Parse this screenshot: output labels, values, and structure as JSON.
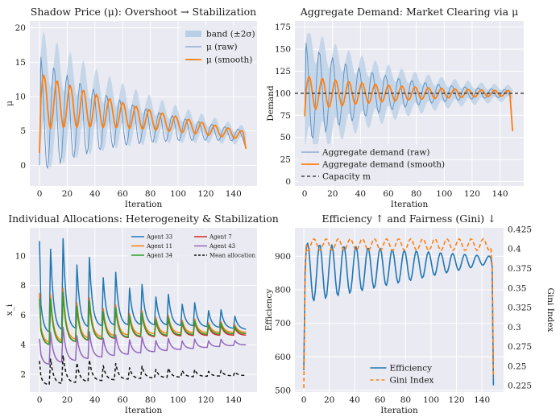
{
  "chart_data": [
    {
      "type": "line",
      "title": "Shadow Price (μ): Overshoot → Stabilization",
      "xlabel": "Iteration",
      "ylabel": "μ",
      "xlim": [
        -7,
        157
      ],
      "ylim": [
        -3,
        21
      ],
      "xticks": [
        0,
        20,
        40,
        60,
        80,
        100,
        120,
        140
      ],
      "yticks": [
        0,
        5,
        10,
        15,
        20
      ],
      "grid": true,
      "legend_position": "upper right",
      "series": [
        {
          "name": "band (±2σ)",
          "kind": "band",
          "color": "#b8cfe6",
          "amp": 6.7,
          "ampEnd": 0.8,
          "phaseLag": 1.6,
          "minLow": -0.4
        },
        {
          "name": "μ (raw)",
          "kind": "raw",
          "color": "#5b8fc4",
          "width": 0.9,
          "mean": 7.3,
          "meanEnd": 4.3,
          "amp": 8.6,
          "ampEnd": 0.8,
          "period": 9.5,
          "phase": 0.6,
          "startVal": 0.0,
          "endVal": 2.4
        },
        {
          "name": "μ (smooth)",
          "kind": "smooth",
          "color": "#ff7f0e",
          "width": 1.8,
          "mean": 9.3,
          "meanEnd": 4.3,
          "amp": 4.1,
          "ampEnd": 0.6,
          "period": 9.5,
          "phase": 2.1,
          "startVal": 1.8,
          "endVal": 2.4
        }
      ]
    },
    {
      "type": "line",
      "title": "Aggregate Demand: Market Clearing via μ",
      "xlabel": "Iteration",
      "ylabel": "Demand",
      "xlim": [
        -7,
        157
      ],
      "ylim": [
        -5,
        182
      ],
      "xticks": [
        0,
        20,
        40,
        60,
        80,
        100,
        120,
        140
      ],
      "yticks": [
        0,
        25,
        50,
        75,
        100,
        125,
        150,
        175
      ],
      "grid": true,
      "legend_position": "lower left",
      "capacity": 100,
      "series": [
        {
          "name": "",
          "kind": "band",
          "color": "#b8cfe6",
          "amp": 58,
          "ampEnd": 6,
          "phaseLag": 1.6,
          "minLow": 10,
          "maxHigh": 168
        },
        {
          "name": "Aggregate demand (raw)",
          "kind": "raw",
          "color": "#5b8fc4",
          "width": 0.9,
          "mean": 100,
          "meanEnd": 100,
          "amp": 58,
          "ampEnd": 4,
          "period": 9.5,
          "phase": 0.6,
          "startVal": 75,
          "endVal": 60
        },
        {
          "name": "Aggregate demand (smooth)",
          "kind": "smooth",
          "color": "#ff7f0e",
          "width": 1.8,
          "mean": 100,
          "meanEnd": 100,
          "amp": 20,
          "ampEnd": 3,
          "period": 9.5,
          "phase": 2.1,
          "startVal": 74,
          "endVal": 57
        },
        {
          "name": "Capacity m",
          "kind": "hline",
          "color": "#222222",
          "value": 100
        }
      ]
    },
    {
      "type": "line",
      "title": "Individual Allocations: Heterogeneity & Stabilization",
      "xlabel": "Iteration",
      "ylabel": "x_i",
      "xlim": [
        -7,
        157
      ],
      "ylim": [
        0.8,
        11.9
      ],
      "xticks": [
        0,
        20,
        40,
        60,
        80,
        100,
        120,
        140
      ],
      "yticks": [
        2,
        4,
        6,
        8,
        10
      ],
      "grid": true,
      "legend_position": "upper right",
      "series": [
        {
          "name": "Agent 33",
          "kind": "spiky",
          "color": "#1f77b4",
          "mean": 6.9,
          "meanEnd": 5.3,
          "amp": 4.2,
          "ampEnd": 0.5,
          "period": 9.5,
          "startVal": 11.0
        },
        {
          "name": "Agent 7",
          "kind": "spiky",
          "color": "#d62728",
          "mean": 5.1,
          "meanEnd": 4.8,
          "amp": 2.3,
          "ampEnd": 0.3,
          "period": 9.5,
          "startVal": 7.3
        },
        {
          "name": "Agent 11",
          "kind": "spiky",
          "color": "#ff7f0e",
          "mean": 5.3,
          "meanEnd": 5.0,
          "amp": 2.4,
          "ampEnd": 0.3,
          "period": 9.5,
          "startVal": 7.5
        },
        {
          "name": "Agent 43",
          "kind": "spiky",
          "color": "#9467bd",
          "mean": 3.4,
          "meanEnd": 4.1,
          "amp": 1.6,
          "ampEnd": 0.2,
          "period": 9.5,
          "startVal": 4.4
        },
        {
          "name": "Agent 34",
          "kind": "spiky",
          "color": "#2ca02c",
          "mean": 5.1,
          "meanEnd": 4.9,
          "amp": 2.3,
          "ampEnd": 0.3,
          "period": 9.5,
          "startVal": 7.1
        },
        {
          "name": "Mean allocation",
          "kind": "spiky",
          "color": "#111111",
          "dashed": true,
          "mean": 1.9,
          "meanEnd": 2.0,
          "amp": 1.3,
          "ampEnd": 0.15,
          "period": 9.5,
          "startVal": 2.9
        }
      ]
    },
    {
      "type": "line",
      "title": "Efficiency ↑ and Fairness (Gini) ↓",
      "xlabel": "Iteration",
      "ylabel": "Efficiency",
      "ylabel_right": "Gini Index",
      "xlim": [
        -7,
        157
      ],
      "ylim": [
        495,
        985
      ],
      "ylim_right": [
        0.217,
        0.427
      ],
      "xticks": [
        0,
        20,
        40,
        60,
        80,
        100,
        120,
        140
      ],
      "yticks": [
        500,
        600,
        700,
        800,
        900
      ],
      "yticks_right": [
        0.225,
        0.25,
        0.275,
        0.3,
        0.325,
        0.35,
        0.375,
        0.4,
        0.425
      ],
      "grid": true,
      "legend_position": "lower center",
      "series": [
        {
          "name": "Efficiency",
          "kind": "eff",
          "color": "#1f77b4",
          "axis": "left",
          "startVal": 560,
          "peak": 940,
          "troughStart": 760,
          "troughEnd": 880,
          "endMean": 885,
          "endVal": 515,
          "period": 9.5
        },
        {
          "name": "Gini Index",
          "kind": "gini",
          "color": "#ff7f0e",
          "axis": "right",
          "dashed": true,
          "startVal": 0.222,
          "high": 0.413,
          "low": 0.398,
          "endVal": 0.235,
          "period": 9.5
        }
      ]
    }
  ]
}
